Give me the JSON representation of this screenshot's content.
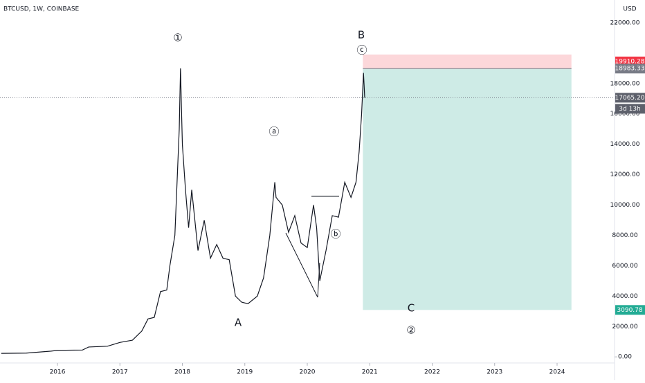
{
  "chart_data": {
    "type": "line",
    "title": "BTCUSD, 1W, COINBASE",
    "y_unit": "USD",
    "series": [
      {
        "name": "BTCUSD",
        "color": "#131722",
        "x": [
          2015.1,
          2015.5,
          2015.9,
          2016.0,
          2016.4,
          2016.5,
          2016.8,
          2017.0,
          2017.2,
          2017.35,
          2017.45,
          2017.55,
          2017.65,
          2017.75,
          2017.8,
          2017.88,
          2017.95,
          2017.97,
          2018.0,
          2018.05,
          2018.1,
          2018.15,
          2018.25,
          2018.35,
          2018.45,
          2018.55,
          2018.65,
          2018.75,
          2018.85,
          2018.95,
          2019.05,
          2019.2,
          2019.3,
          2019.4,
          2019.48,
          2019.5,
          2019.6,
          2019.7,
          2019.8,
          2019.9,
          2020.0,
          2020.1,
          2020.15,
          2020.2,
          2020.3,
          2020.4,
          2020.5,
          2020.6,
          2020.7,
          2020.78,
          2020.83,
          2020.87,
          2020.9,
          2020.92
        ],
        "values": [
          230,
          250,
          380,
          430,
          450,
          650,
          700,
          950,
          1100,
          1700,
          2500,
          2600,
          4300,
          4400,
          6000,
          8000,
          15000,
          19000,
          14000,
          11000,
          8500,
          11000,
          7000,
          9000,
          6500,
          7400,
          6500,
          6400,
          4000,
          3600,
          3500,
          4000,
          5200,
          8000,
          11500,
          10500,
          10000,
          8200,
          9300,
          7500,
          7200,
          10000,
          8500,
          5000,
          7000,
          9300,
          9200,
          11500,
          10500,
          11500,
          13500,
          16000,
          18700,
          17065.2
        ]
      }
    ],
    "xlim": [
      2015.08,
      2024.92
    ],
    "xticks": [
      2016,
      2017,
      2018,
      2019,
      2020,
      2021,
      2022,
      2023,
      2024
    ],
    "ylim": [
      -400,
      23500
    ],
    "yticks": [
      {
        "value": 0,
        "label": "0.00"
      },
      {
        "value": 2000,
        "label": "2000.00"
      },
      {
        "value": 4000,
        "label": "4000.00"
      },
      {
        "value": 6000,
        "label": "6000.00"
      },
      {
        "value": 8000,
        "label": "8000.00"
      },
      {
        "value": 10000,
        "label": "10000.00"
      },
      {
        "value": 12000,
        "label": "12000.00"
      },
      {
        "value": 14000,
        "label": "14000.00"
      },
      {
        "value": 16000,
        "label": "16000.00"
      },
      {
        "value": 18000,
        "label": "18000.00"
      },
      {
        "value": 22000,
        "label": "22000.00"
      }
    ],
    "position": {
      "start": 2020.89,
      "end": 2024.23,
      "stop": 19910.28,
      "entry": 18983.33,
      "target": 3090.78
    },
    "last_price": {
      "value": 17065.2,
      "label": "17065.20"
    },
    "countdown": "3d 13h",
    "annotations": [
      "①",
      "ⓐ",
      "ⓑ",
      "ⓒ",
      "②",
      "A",
      "B",
      "C"
    ]
  }
}
